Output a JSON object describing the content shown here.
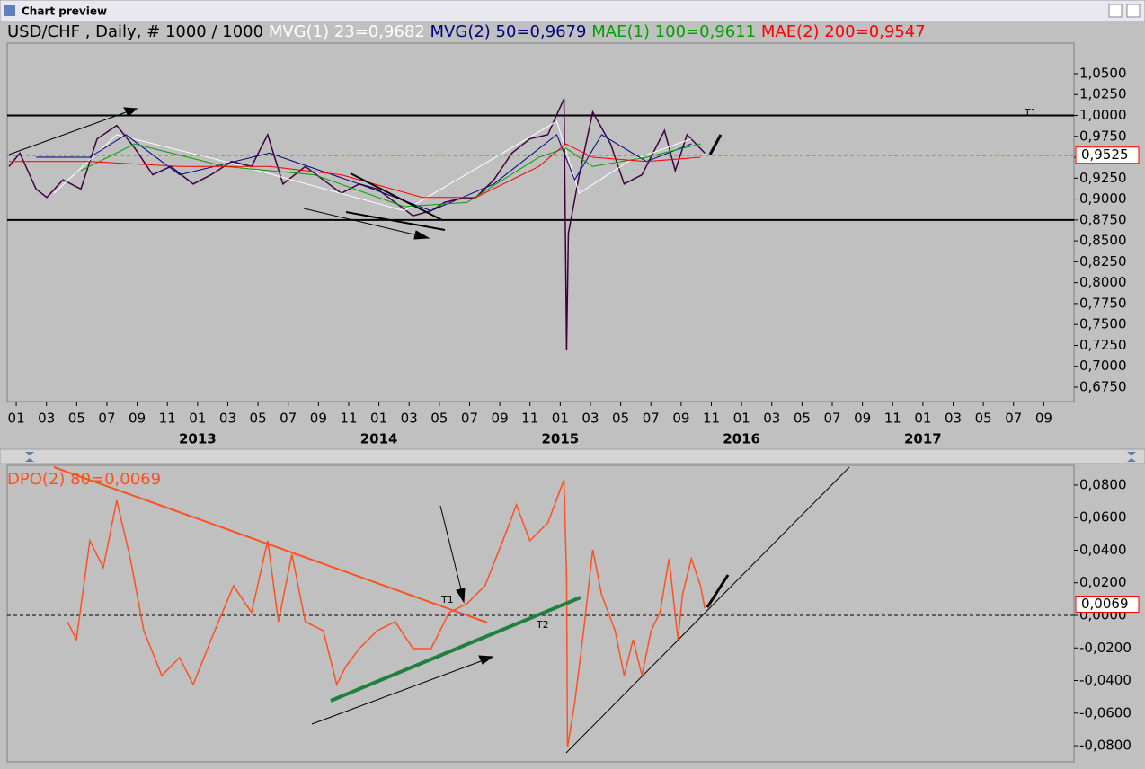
{
  "window": {
    "title": "Chart preview"
  },
  "chart_data": [
    {
      "type": "line",
      "title": "USD/CHF , Daily, # 1000 / 1000",
      "xlim": [
        -0.6,
        70
      ],
      "xticks": [
        {
          "value": 0,
          "label": "01"
        },
        {
          "value": 2,
          "label": "03"
        },
        {
          "value": 4,
          "label": "05"
        },
        {
          "value": 6,
          "label": "07"
        },
        {
          "value": 8,
          "label": "09"
        },
        {
          "value": 10,
          "label": "11"
        },
        {
          "value": 12,
          "label": "01"
        },
        {
          "value": 14,
          "label": "03"
        },
        {
          "value": 16,
          "label": "05"
        },
        {
          "value": 18,
          "label": "07"
        },
        {
          "value": 20,
          "label": "09"
        },
        {
          "value": 22,
          "label": "11"
        },
        {
          "value": 24,
          "label": "01"
        },
        {
          "value": 26,
          "label": "03"
        },
        {
          "value": 28,
          "label": "05"
        },
        {
          "value": 30,
          "label": "07"
        },
        {
          "value": 32,
          "label": "09"
        },
        {
          "value": 34,
          "label": "11"
        },
        {
          "value": 36,
          "label": "01"
        },
        {
          "value": 38,
          "label": "03"
        },
        {
          "value": 40,
          "label": "05"
        },
        {
          "value": 42,
          "label": "07"
        },
        {
          "value": 44,
          "label": "09"
        },
        {
          "value": 46,
          "label": "11"
        },
        {
          "value": 48,
          "label": "01"
        },
        {
          "value": 50,
          "label": "03"
        },
        {
          "value": 52,
          "label": "05"
        },
        {
          "value": 54,
          "label": "07"
        },
        {
          "value": 56,
          "label": "09"
        },
        {
          "value": 58,
          "label": "11"
        },
        {
          "value": 60,
          "label": "01"
        },
        {
          "value": 62,
          "label": "03"
        },
        {
          "value": 64,
          "label": "05"
        },
        {
          "value": 66,
          "label": "07"
        },
        {
          "value": 68,
          "label": "09"
        }
      ],
      "year_ticks": [
        {
          "value": 12,
          "label": "2013"
        },
        {
          "value": 24,
          "label": "2014"
        },
        {
          "value": 36,
          "label": "2015"
        },
        {
          "value": 48,
          "label": "2016"
        },
        {
          "value": 60,
          "label": "2017"
        }
      ],
      "ylim": [
        0.6578,
        1.0865
      ],
      "yticks": [
        {
          "value": 0.675,
          "label": "0,6750"
        },
        {
          "value": 0.7,
          "label": "0,7000"
        },
        {
          "value": 0.725,
          "label": "0,7250"
        },
        {
          "value": 0.75,
          "label": "0,7500"
        },
        {
          "value": 0.775,
          "label": "0,7750"
        },
        {
          "value": 0.8,
          "label": "0,8000"
        },
        {
          "value": 0.825,
          "label": "0,8250"
        },
        {
          "value": 0.85,
          "label": "0,8500"
        },
        {
          "value": 0.875,
          "label": "0,8750"
        },
        {
          "value": 0.9,
          "label": "0,9000"
        },
        {
          "value": 0.925,
          "label": "0,9250"
        },
        {
          "value": 0.95,
          "label": "0,9500"
        },
        {
          "value": 0.975,
          "label": "0,9750"
        },
        {
          "value": 1.0,
          "label": "1,0000"
        },
        {
          "value": 1.025,
          "label": "1,0250"
        },
        {
          "value": 1.05,
          "label": "1,0500"
        }
      ],
      "hlines": [
        1.0,
        0.875
      ],
      "current": {
        "value": 0.9525,
        "label": "0,9525"
      },
      "annotations": [
        "T1"
      ],
      "series": [
        {
          "color": "#400040",
          "x": [
            -0.48,
            0.24,
            1.31,
            2.02,
            3.09,
            4.28,
            5.35,
            6.65,
            7.84,
            9.03,
            10.22,
            11.71,
            12.89,
            14.26,
            15.57,
            16.64,
            17.65,
            19.13,
            20.32,
            21.51,
            22.7,
            23.89,
            25.07,
            26.26,
            27.45,
            28.34,
            29.23,
            30.42,
            31.61,
            32.8,
            33.99,
            35.18,
            36.25,
            36.42,
            36.54,
            37.26,
            38.15,
            39.33,
            40.23,
            41.41,
            42.9,
            43.61,
            44.39,
            45.57
          ],
          "values": [
            0.939,
            0.955,
            0.912,
            0.902,
            0.923,
            0.912,
            0.972,
            0.988,
            0.961,
            0.929,
            0.939,
            0.918,
            0.929,
            0.945,
            0.939,
            0.977,
            0.918,
            0.939,
            0.923,
            0.907,
            0.918,
            0.912,
            0.896,
            0.88,
            0.886,
            0.896,
            0.9,
            0.902,
            0.923,
            0.955,
            0.972,
            0.977,
            1.02,
            0.719,
            0.859,
            0.929,
            1.004,
            0.966,
            0.918,
            0.929,
            0.982,
            0.934,
            0.977,
            0.955
          ]
        },
        {
          "name": "MVG(1) 23=0,9682",
          "color": "#ffffff",
          "x": [
            2.5,
            6.65,
            13.78,
            25.67,
            35.77,
            37.26,
            40.52,
            44.68
          ],
          "values": [
            0.907,
            0.977,
            0.945,
            0.886,
            0.993,
            0.907,
            0.945,
            0.972
          ]
        },
        {
          "name": "MVG(2) 50=0,9679",
          "color": "#000080",
          "x": [
            1.31,
            4.87,
            7.25,
            10.81,
            16.76,
            22.7,
            27.45,
            31.61,
            35.77,
            36.96,
            38.74,
            41.71,
            44.68
          ],
          "values": [
            0.95,
            0.95,
            0.977,
            0.929,
            0.955,
            0.918,
            0.886,
            0.918,
            0.977,
            0.923,
            0.977,
            0.945,
            0.966
          ]
        },
        {
          "name": "MAE(1) 100=0,9611",
          "color": "#00a000",
          "x": [
            4.28,
            7.84,
            13.78,
            19.73,
            25.67,
            29.83,
            34.58,
            36.36,
            38.15,
            41.71,
            45.28
          ],
          "values": [
            0.934,
            0.966,
            0.939,
            0.929,
            0.891,
            0.896,
            0.95,
            0.961,
            0.939,
            0.95,
            0.966
          ]
        },
        {
          "name": "MAE(2) 200=0,9547",
          "color": "#ff0000",
          "x": [
            -0.48,
            4.87,
            10.81,
            16.76,
            21.51,
            26.86,
            30.42,
            34.58,
            36.36,
            38.15,
            41.71,
            45.28
          ],
          "values": [
            0.945,
            0.945,
            0.939,
            0.939,
            0.929,
            0.902,
            0.902,
            0.939,
            0.966,
            0.95,
            0.945,
            0.95
          ]
        }
      ]
    },
    {
      "type": "line",
      "title": "DPO(2) 80=0,0069",
      "xlim": [
        -0.6,
        70
      ],
      "ylim": [
        -0.0899,
        0.0921
      ],
      "yticks": [
        {
          "value": -0.08,
          "label": "-0,0800"
        },
        {
          "value": -0.06,
          "label": "-0,0600"
        },
        {
          "value": -0.04,
          "label": "-0,0400"
        },
        {
          "value": -0.02,
          "label": "-0,0200"
        },
        {
          "value": 0,
          "label": "0,0000"
        },
        {
          "value": 0.02,
          "label": "0,0200"
        },
        {
          "value": 0.04,
          "label": "0,0400"
        },
        {
          "value": 0.06,
          "label": "0,0600"
        },
        {
          "value": 0.08,
          "label": "0,0800"
        }
      ],
      "current": {
        "value": 0.0069,
        "label": "0,0069"
      },
      "annotations": [
        "T1",
        "T2"
      ],
      "series": [
        {
          "color": "#ff5020",
          "x": [
            3.39,
            3.98,
            4.87,
            5.76,
            6.65,
            7.55,
            8.44,
            9.63,
            10.81,
            11.71,
            12.89,
            14.38,
            15.57,
            16.64,
            17.35,
            18.24,
            19.13,
            20.32,
            21.21,
            21.81,
            22.7,
            23.89,
            25.07,
            26.26,
            27.45,
            28.05,
            28.64,
            29.83,
            31.02,
            32.2,
            33.1,
            33.99,
            35.18,
            36.07,
            36.25,
            36.42,
            36.48,
            36.96,
            37.55,
            38.15,
            38.74,
            39.63,
            40.23,
            40.82,
            41.41,
            42.01,
            42.6,
            43.2,
            43.79,
            44.09,
            44.68,
            45.28,
            45.57
          ],
          "values": [
            -0.0039,
            -0.0149,
            0.0458,
            0.0293,
            0.0706,
            0.0348,
            -0.0094,
            -0.0369,
            -0.0259,
            -0.0425,
            -0.0149,
            0.0182,
            0.0017,
            0.0458,
            -0.0039,
            0.0375,
            -0.0039,
            -0.0094,
            -0.0425,
            -0.0314,
            -0.0204,
            -0.0094,
            -0.0039,
            -0.0204,
            -0.0204,
            -0.0094,
            0.0017,
            0.0072,
            0.0182,
            0.0458,
            0.0679,
            0.0458,
            0.0568,
            0.0789,
            0.0833,
            0.0237,
            -0.0811,
            -0.0535,
            -0.0094,
            0.0403,
            0.0127,
            -0.0094,
            -0.0369,
            -0.0149,
            -0.0369,
            -0.0094,
            0.0017,
            0.0348,
            -0.0149,
            0.0127,
            0.0348,
            0.0182,
            0.0044
          ]
        }
      ]
    }
  ]
}
